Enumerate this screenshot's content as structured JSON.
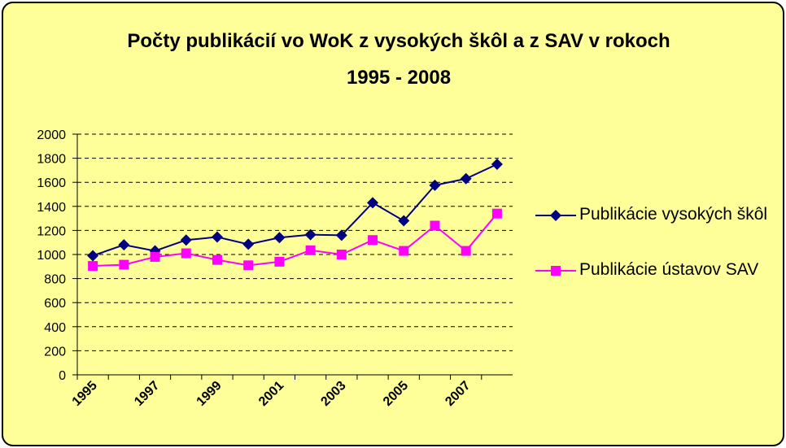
{
  "chart_data": {
    "type": "line",
    "title": "Počty publikácií vo WoK z vysokých škôl a z SAV v rokoch 1995 - 2008",
    "categories": [
      "1995",
      null,
      "1997",
      null,
      "1999",
      null,
      "2001",
      null,
      "2003",
      null,
      "2005",
      null,
      "2007",
      null
    ],
    "series": [
      {
        "name": "Publikácie vysokých škôl",
        "color": "#000080",
        "marker": "diamond",
        "values": [
          990,
          1080,
          1030,
          1120,
          1145,
          1085,
          1140,
          1165,
          1160,
          1430,
          1280,
          1575,
          1630,
          1750
        ]
      },
      {
        "name": "Publikácie ústavov SAV",
        "color": "#ff00ff",
        "marker": "square",
        "values": [
          905,
          915,
          980,
          1010,
          955,
          910,
          940,
          1035,
          1000,
          1120,
          1030,
          1240,
          1030,
          1340
        ]
      }
    ],
    "ylim": [
      0,
      2000
    ],
    "yticks": [
      0,
      200,
      400,
      600,
      800,
      1000,
      1200,
      1400,
      1600,
      1800,
      2000
    ],
    "grid": true,
    "legend": "right"
  }
}
